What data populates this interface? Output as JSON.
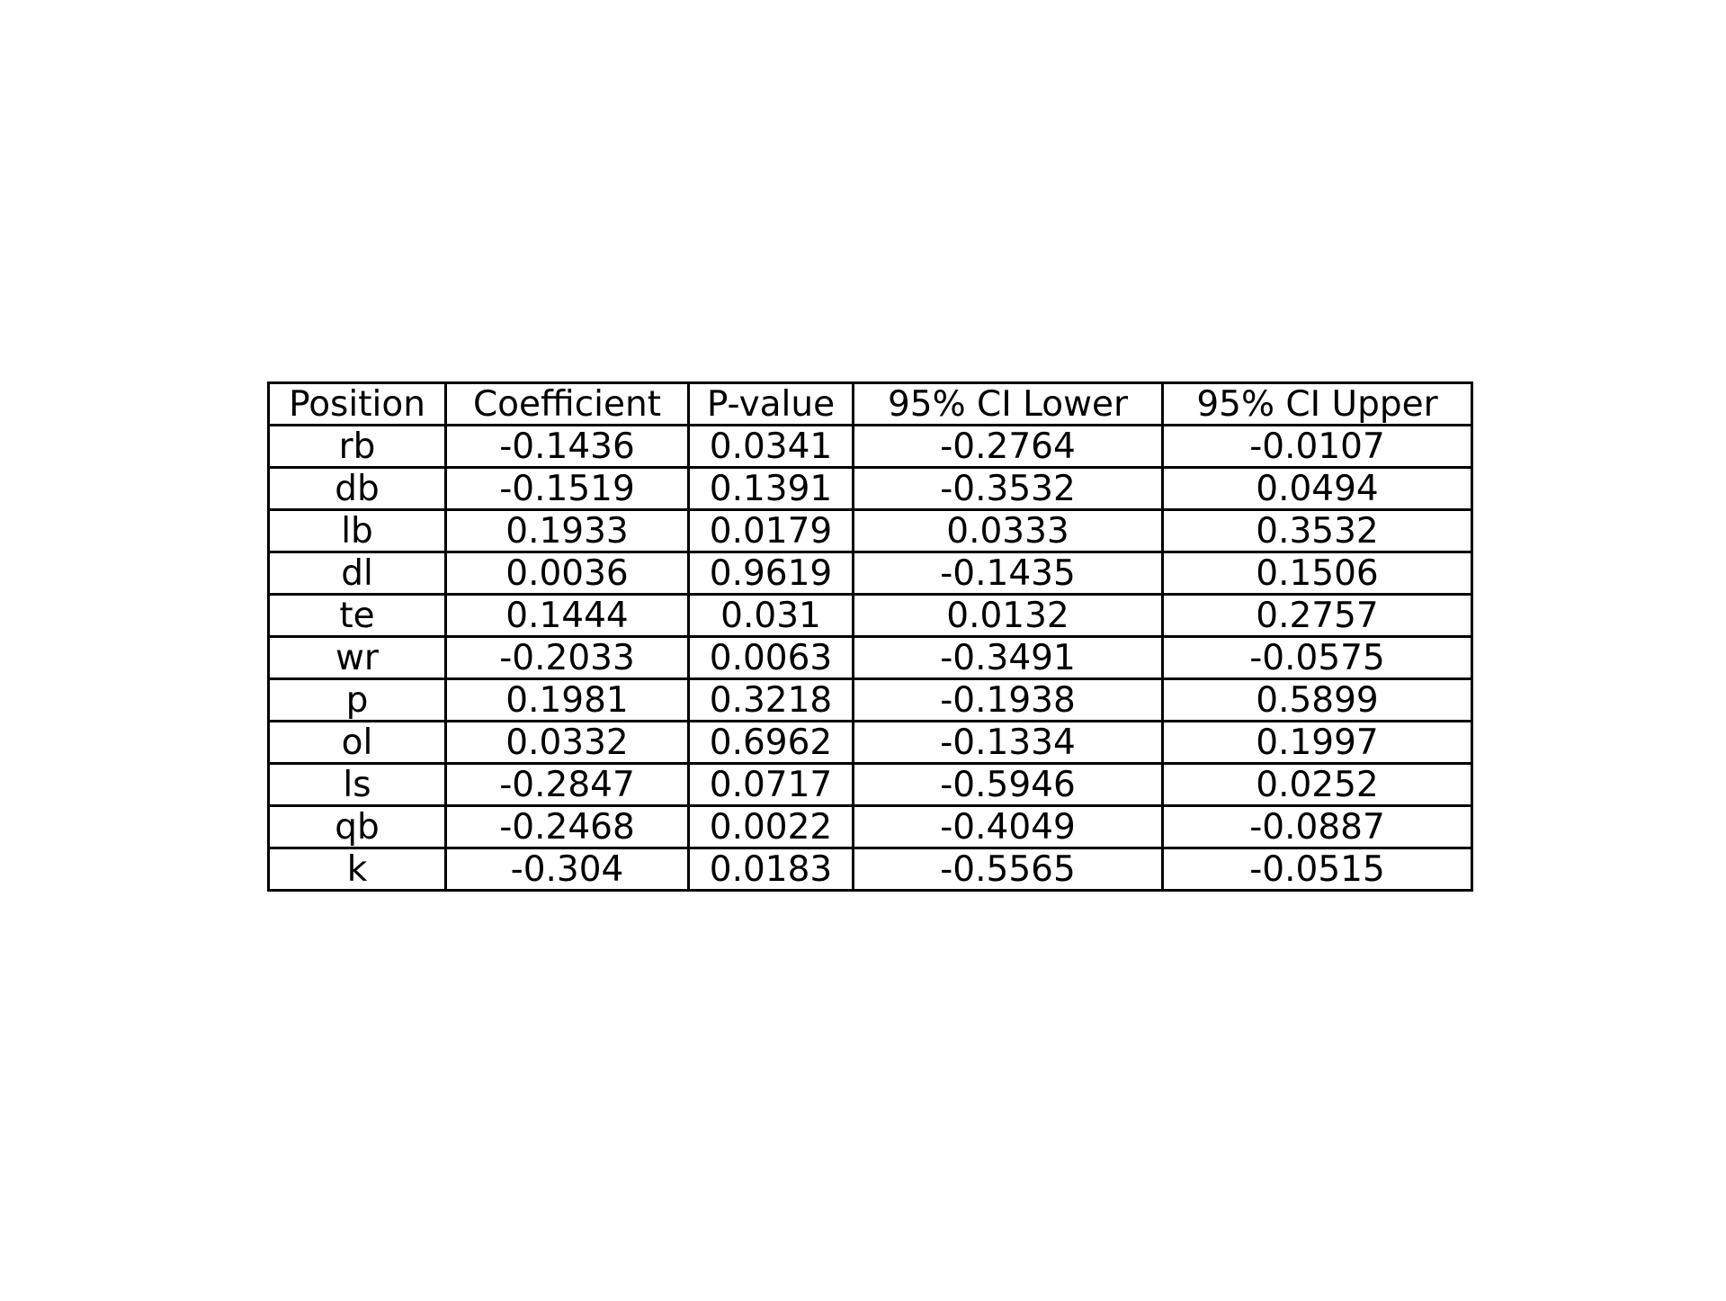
{
  "chart_data": {
    "type": "table",
    "columns": [
      "Position",
      "Coefficient",
      "P-value",
      "95% CI Lower",
      "95% CI Upper"
    ],
    "rows": [
      [
        "rb",
        "-0.1436",
        "0.0341",
        "-0.2764",
        "-0.0107"
      ],
      [
        "db",
        "-0.1519",
        "0.1391",
        "-0.3532",
        "0.0494"
      ],
      [
        "lb",
        "0.1933",
        "0.0179",
        "0.0333",
        "0.3532"
      ],
      [
        "dl",
        "0.0036",
        "0.9619",
        "-0.1435",
        "0.1506"
      ],
      [
        "te",
        "0.1444",
        "0.031",
        "0.0132",
        "0.2757"
      ],
      [
        "wr",
        "-0.2033",
        "0.0063",
        "-0.3491",
        "-0.0575"
      ],
      [
        "p",
        "0.1981",
        "0.3218",
        "-0.1938",
        "0.5899"
      ],
      [
        "ol",
        "0.0332",
        "0.6962",
        "-0.1334",
        "0.1997"
      ],
      [
        "ls",
        "-0.2847",
        "0.0717",
        "-0.5946",
        "0.0252"
      ],
      [
        "qb",
        "-0.2468",
        "0.0022",
        "-0.4049",
        "-0.0887"
      ],
      [
        "k",
        "-0.304",
        "0.0183",
        "-0.5565",
        "-0.0515"
      ]
    ]
  }
}
